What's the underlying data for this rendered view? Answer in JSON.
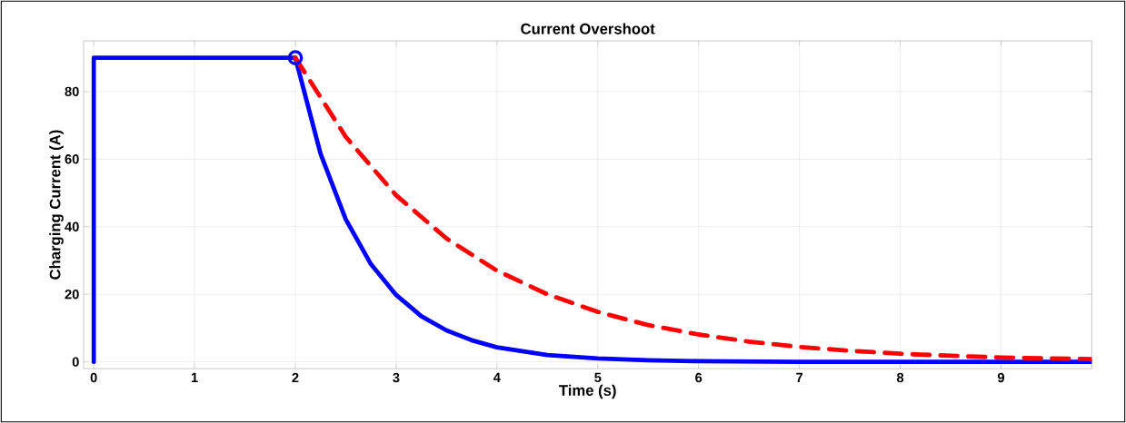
{
  "chart_data": {
    "type": "line",
    "title": "Current Overshoot",
    "xlabel": "Time (s)",
    "ylabel": "Charging Current (A)",
    "xlim": [
      -0.1,
      9.9
    ],
    "ylim": [
      -2,
      95
    ],
    "xticks": [
      0,
      1,
      2,
      3,
      4,
      5,
      6,
      7,
      8,
      9
    ],
    "yticks": [
      0,
      20,
      40,
      60,
      80
    ],
    "grid": true,
    "series": [
      {
        "color": "#0000ff",
        "line_style": "solid",
        "x": [
          0,
          0,
          2,
          2.25,
          2.5,
          2.75,
          3,
          3.25,
          3.5,
          3.75,
          4,
          4.5,
          5,
          5.5,
          6,
          7,
          8,
          9,
          9.9
        ],
        "values": [
          0,
          90,
          90,
          61.6,
          42.2,
          28.9,
          19.8,
          13.5,
          9.3,
          6.4,
          4.3,
          2.0,
          1.0,
          0.5,
          0.2,
          0,
          0,
          0,
          0
        ]
      },
      {
        "color": "#ff0000",
        "line_style": "dashed",
        "x": [
          2,
          2.5,
          3,
          3.5,
          4,
          4.5,
          5,
          5.5,
          6,
          6.5,
          7,
          7.5,
          8,
          8.5,
          9,
          9.9
        ],
        "values": [
          90,
          66.6,
          49.3,
          36.5,
          27,
          20,
          14.8,
          10.9,
          8.1,
          6.0,
          4.4,
          3.3,
          2.4,
          1.8,
          1.3,
          0.8
        ]
      },
      {
        "type": "scatter",
        "marker": "circle",
        "color": "#0000ff",
        "x": [
          2
        ],
        "values": [
          90
        ]
      }
    ]
  }
}
